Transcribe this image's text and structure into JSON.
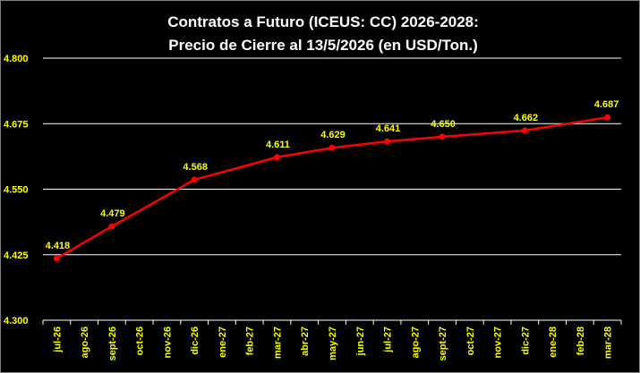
{
  "chart_data": {
    "type": "line",
    "title_line1": "Contratos  a Futuro (ICEUS: CC) 2026-2028:",
    "title_line2": "Precio de Cierre al 13/5/2026 (en USD/Ton.)",
    "categories": [
      "jul-26",
      "ago-26",
      "sept-26",
      "oct-26",
      "nov-26",
      "dic-26",
      "ene-27",
      "feb-27",
      "mar-27",
      "abr-27",
      "may-27",
      "jun-27",
      "jul-27",
      "ago-27",
      "sept-27",
      "oct-27",
      "nov-27",
      "dic-27",
      "ene-28",
      "feb-28",
      "mar-28"
    ],
    "series": [
      {
        "color": "#ff0000",
        "points": [
          {
            "x": "jul-26",
            "y": 4418,
            "label": "4.418"
          },
          {
            "x": "sept-26",
            "y": 4479,
            "label": "4.479"
          },
          {
            "x": "dic-26",
            "y": 4568,
            "label": "4.568"
          },
          {
            "x": "mar-27",
            "y": 4611,
            "label": "4.611"
          },
          {
            "x": "may-27",
            "y": 4629,
            "label": "4.629"
          },
          {
            "x": "jul-27",
            "y": 4641,
            "label": "4.641"
          },
          {
            "x": "sept-27",
            "y": 4650,
            "label": "4.650"
          },
          {
            "x": "dic-27",
            "y": 4662,
            "label": "4.662"
          },
          {
            "x": "mar-28",
            "y": 4687,
            "label": "4.687"
          }
        ]
      }
    ],
    "yticks": [
      {
        "value": 4300,
        "label": "4.300"
      },
      {
        "value": 4425,
        "label": "4.425"
      },
      {
        "value": 4550,
        "label": "4.550"
      },
      {
        "value": 4675,
        "label": "4.675"
      },
      {
        "value": 4800,
        "label": "4.800"
      }
    ],
    "ylim": [
      4300,
      4800
    ],
    "grid": true,
    "colors": {
      "background": "#000000",
      "line": "#ff0000",
      "labels": "#ffff00",
      "title": "#ffffff",
      "grid": "#ffffff"
    }
  }
}
